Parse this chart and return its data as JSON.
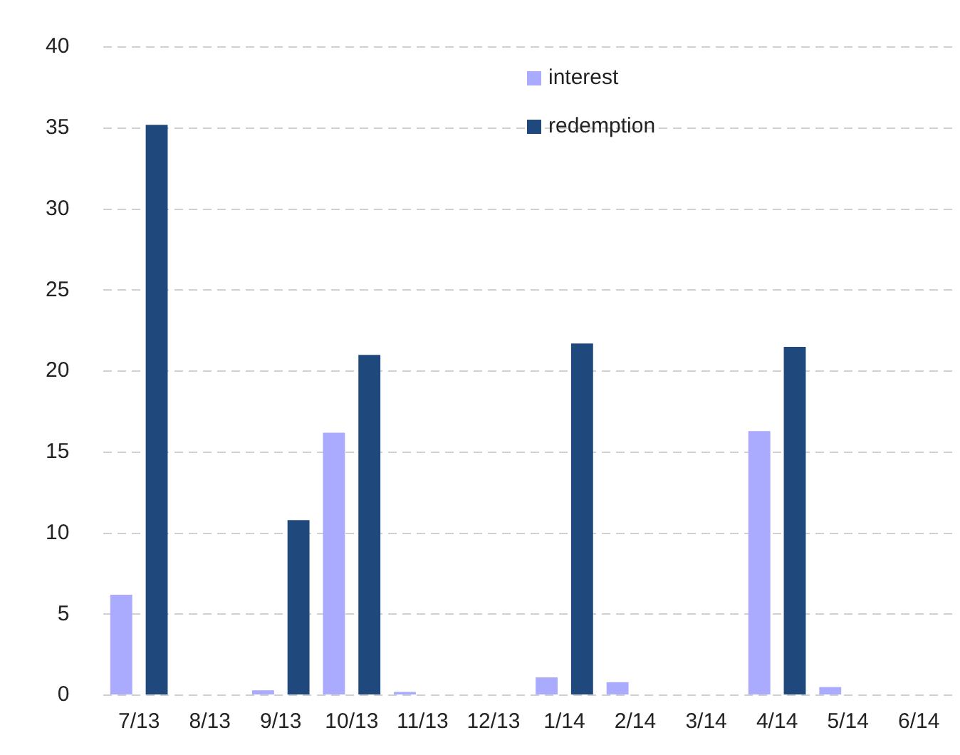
{
  "chart_data": {
    "type": "bar",
    "categories": [
      "7/13",
      "8/13",
      "9/13",
      "10/13",
      "11/13",
      "12/13",
      "1/14",
      "2/14",
      "3/14",
      "4/14",
      "5/14",
      "6/14"
    ],
    "series": [
      {
        "name": "interest",
        "color": "#aaaaff",
        "values": [
          6.2,
          0,
          0.3,
          16.2,
          0.2,
          0,
          1.1,
          0.8,
          0,
          16.3,
          0.5,
          0
        ]
      },
      {
        "name": "redemption",
        "color": "#1f497d",
        "values": [
          35.2,
          0,
          10.8,
          21.0,
          0,
          0,
          21.7,
          0,
          0,
          21.5,
          0,
          0
        ]
      }
    ],
    "ylim": [
      0,
      40
    ],
    "yticks": [
      0,
      5,
      10,
      15,
      20,
      25,
      30,
      35,
      40
    ],
    "grid": "y",
    "legend": "top right"
  }
}
